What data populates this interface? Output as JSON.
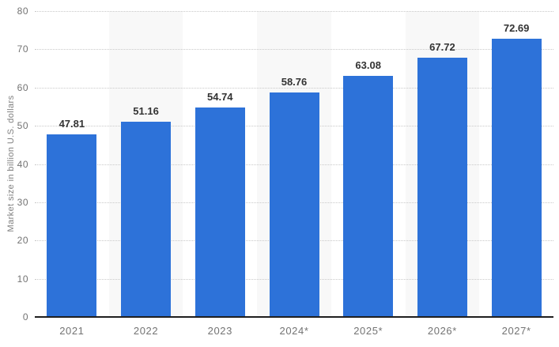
{
  "chart_data": {
    "type": "bar",
    "categories": [
      "2021",
      "2022",
      "2023",
      "2024*",
      "2025*",
      "2026*",
      "2027*"
    ],
    "values": [
      47.81,
      51.16,
      54.74,
      58.76,
      63.08,
      67.72,
      72.69
    ],
    "value_labels": [
      "47.81",
      "51.16",
      "54.74",
      "58.76",
      "63.08",
      "67.72",
      "72.69"
    ],
    "title": "",
    "xlabel": "",
    "ylabel": "Market size in billion U.S. dollars",
    "ylim": [
      0,
      80
    ],
    "yticks": [
      0,
      10,
      20,
      30,
      40,
      50,
      60,
      70,
      80
    ],
    "grid": "horizontal-dotted",
    "legend": "none",
    "colors": {
      "bar": "#2d72d9",
      "alt_column_band": "#f8f8f8",
      "gridline": "#c9c9c9",
      "baseline": "#1f1f1f",
      "value_label_text": "#333333",
      "axis_tick_text": "#737373",
      "axis_title_text": "#808080",
      "background": "#ffffff"
    },
    "alt_band_column_indexes": [
      1,
      3,
      5
    ]
  }
}
